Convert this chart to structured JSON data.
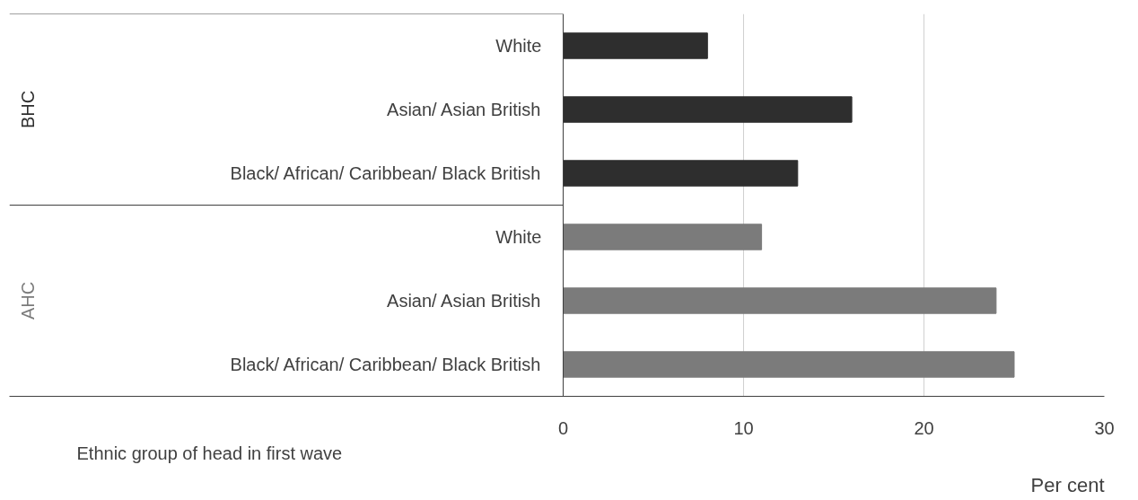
{
  "chart_data": {
    "type": "bar",
    "orientation": "horizontal",
    "xlabel": "Per cent",
    "ylabel": "Ethnic group of head in first wave",
    "categories": [
      "White",
      "Asian/ Asian British",
      "Black/ African/ Caribbean/ Black British",
      "White",
      "Asian/ Asian British",
      "Black/ African/ Caribbean/ Black British"
    ],
    "series": [
      {
        "name": "BHC",
        "color": "#2e2e2e",
        "values": [
          8,
          16,
          13,
          null,
          null,
          null
        ]
      },
      {
        "name": "AHC",
        "color": "#7b7b7b",
        "values": [
          null,
          null,
          null,
          11,
          24,
          25
        ]
      }
    ],
    "xlim": [
      0,
      30
    ],
    "xticks": [
      0,
      10,
      20,
      30
    ],
    "grid": "x",
    "legend": false
  }
}
